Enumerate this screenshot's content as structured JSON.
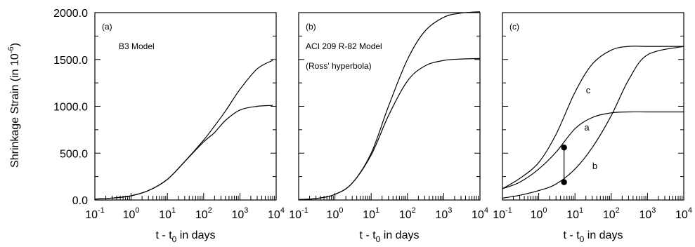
{
  "chart_data": [
    {
      "type": "line",
      "panel_label": "(a)",
      "annotations": [
        "B3 Model"
      ],
      "xlabel": "t - t",
      "xlabel_sub": "0",
      "xlabel_suffix": " in days",
      "ylabel": "Shrinkage Strain (in 10",
      "ylabel_sup": "-6",
      "ylabel_end": ")",
      "xscale": "log",
      "xlim": [
        0.1,
        10000
      ],
      "ylim": [
        0,
        2000
      ],
      "yticks": [
        "0.0",
        "500.0",
        "1000.0",
        "1500.0",
        "2000.0"
      ],
      "xtick_exponents": [
        "-1",
        "0",
        "1",
        "2",
        "3",
        "4"
      ],
      "series": [
        {
          "x": [
            0.1,
            0.3,
            1,
            3,
            10,
            30,
            100,
            200,
            400,
            1000,
            3000,
            8000
          ],
          "y": [
            10,
            20,
            45,
            100,
            220,
            410,
            640,
            790,
            950,
            1180,
            1400,
            1490
          ]
        },
        {
          "x": [
            0.1,
            0.3,
            1,
            3,
            10,
            30,
            100,
            200,
            400,
            1000,
            3000,
            8000
          ],
          "y": [
            10,
            20,
            45,
            100,
            220,
            410,
            620,
            720,
            850,
            960,
            1000,
            1010
          ]
        }
      ],
      "curve_labels": []
    },
    {
      "type": "line",
      "panel_label": "(b)",
      "annotations": [
        "ACI 209 R-82 Model",
        "(Ross' hyperbola)"
      ],
      "xlabel": "t - t",
      "xlabel_sub": "0",
      "xlabel_suffix": " in days",
      "xscale": "log",
      "xlim": [
        0.1,
        10000
      ],
      "ylim": [
        0,
        2000
      ],
      "xtick_exponents": [
        "-1",
        "0",
        "1",
        "2",
        "3",
        "4"
      ],
      "series": [
        {
          "x": [
            0.1,
            0.3,
            1,
            3,
            10,
            30,
            100,
            300,
            1000,
            3000,
            10000
          ],
          "y": [
            5,
            15,
            60,
            180,
            500,
            1000,
            1500,
            1800,
            1950,
            1995,
            2010
          ]
        },
        {
          "x": [
            0.1,
            0.3,
            1,
            3,
            10,
            30,
            100,
            300,
            1000,
            3000,
            10000
          ],
          "y": [
            5,
            15,
            60,
            180,
            480,
            900,
            1270,
            1430,
            1490,
            1505,
            1510
          ]
        }
      ],
      "curve_labels": []
    },
    {
      "type": "line",
      "panel_label": "(c)",
      "annotations": [],
      "xlabel": "t - t",
      "xlabel_sub": "0",
      "xlabel_suffix": " in days",
      "xscale": "log",
      "xlim": [
        0.1,
        10000
      ],
      "ylim": [
        0,
        2000
      ],
      "xtick_exponents": [
        "-1",
        "0",
        "1",
        "2",
        "3",
        "4"
      ],
      "series": [
        {
          "x": [
            0.1,
            0.3,
            1,
            3,
            10,
            30,
            100,
            300,
            1000,
            10000
          ],
          "y": [
            120,
            190,
            330,
            510,
            760,
            880,
            930,
            940,
            940,
            940
          ]
        },
        {
          "x": [
            0.1,
            0.3,
            1,
            3,
            10,
            30,
            100,
            300,
            1000,
            10000
          ],
          "y": [
            20,
            50,
            100,
            170,
            330,
            560,
            900,
            1280,
            1550,
            1640
          ]
        },
        {
          "x": [
            0.1,
            0.3,
            1,
            3,
            10,
            30,
            100,
            300,
            1000,
            10000
          ],
          "y": [
            120,
            230,
            400,
            700,
            1150,
            1450,
            1600,
            1640,
            1640,
            1640
          ]
        }
      ],
      "markers": [
        {
          "x": 5,
          "y": 560
        },
        {
          "x": 5,
          "y": 190
        }
      ],
      "curve_labels": [
        {
          "text": "c",
          "x": 20,
          "y": 1140
        },
        {
          "text": "a",
          "x": 18,
          "y": 740
        },
        {
          "text": "b",
          "x": 30,
          "y": 330
        }
      ]
    }
  ]
}
